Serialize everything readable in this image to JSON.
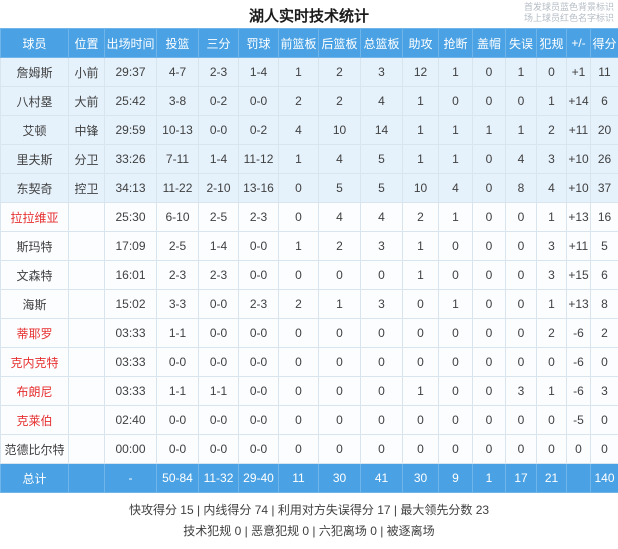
{
  "title": "湖人实时技术统计",
  "legend": {
    "line1": "首发球员蓝色背景标识",
    "line2": "场上球员红色名字标识"
  },
  "columns": [
    "球员",
    "位置",
    "出场时间",
    "投篮",
    "三分",
    "罚球",
    "前篮板",
    "后篮板",
    "总篮板",
    "助攻",
    "抢断",
    "盖帽",
    "失误",
    "犯规",
    "+/-",
    "得分"
  ],
  "field_order": [
    "name",
    "position",
    "time",
    "fg",
    "three",
    "ft",
    "oreb",
    "dreb",
    "reb",
    "ast",
    "stl",
    "blk",
    "tov",
    "pf",
    "plusminus",
    "pts"
  ],
  "players": [
    {
      "name": "詹姆斯",
      "position": "小前",
      "time": "29:37",
      "fg": "4-7",
      "three": "2-3",
      "ft": "1-4",
      "oreb": "1",
      "dreb": "2",
      "reb": "3",
      "ast": "12",
      "stl": "1",
      "blk": "0",
      "tov": "1",
      "pf": "0",
      "plusminus": "+1",
      "pts": "11",
      "starter": true,
      "oncourt": false
    },
    {
      "name": "八村塁",
      "position": "大前",
      "time": "25:42",
      "fg": "3-8",
      "three": "0-2",
      "ft": "0-0",
      "oreb": "2",
      "dreb": "2",
      "reb": "4",
      "ast": "1",
      "stl": "0",
      "blk": "0",
      "tov": "0",
      "pf": "1",
      "plusminus": "+14",
      "pts": "6",
      "starter": true,
      "oncourt": false
    },
    {
      "name": "艾顿",
      "position": "中锋",
      "time": "29:59",
      "fg": "10-13",
      "three": "0-0",
      "ft": "0-2",
      "oreb": "4",
      "dreb": "10",
      "reb": "14",
      "ast": "1",
      "stl": "1",
      "blk": "1",
      "tov": "1",
      "pf": "2",
      "plusminus": "+11",
      "pts": "20",
      "starter": true,
      "oncourt": false
    },
    {
      "name": "里夫斯",
      "position": "分卫",
      "time": "33:26",
      "fg": "7-11",
      "three": "1-4",
      "ft": "11-12",
      "oreb": "1",
      "dreb": "4",
      "reb": "5",
      "ast": "1",
      "stl": "1",
      "blk": "0",
      "tov": "4",
      "pf": "3",
      "plusminus": "+10",
      "pts": "26",
      "starter": true,
      "oncourt": false
    },
    {
      "name": "东契奇",
      "position": "控卫",
      "time": "34:13",
      "fg": "11-22",
      "three": "2-10",
      "ft": "13-16",
      "oreb": "0",
      "dreb": "5",
      "reb": "5",
      "ast": "10",
      "stl": "4",
      "blk": "0",
      "tov": "8",
      "pf": "4",
      "plusminus": "+10",
      "pts": "37",
      "starter": true,
      "oncourt": false
    },
    {
      "name": "拉拉维亚",
      "position": "",
      "time": "25:30",
      "fg": "6-10",
      "three": "2-5",
      "ft": "2-3",
      "oreb": "0",
      "dreb": "4",
      "reb": "4",
      "ast": "2",
      "stl": "1",
      "blk": "0",
      "tov": "0",
      "pf": "1",
      "plusminus": "+13",
      "pts": "16",
      "starter": false,
      "oncourt": true
    },
    {
      "name": "斯玛特",
      "position": "",
      "time": "17:09",
      "fg": "2-5",
      "three": "1-4",
      "ft": "0-0",
      "oreb": "1",
      "dreb": "2",
      "reb": "3",
      "ast": "1",
      "stl": "0",
      "blk": "0",
      "tov": "0",
      "pf": "3",
      "plusminus": "+11",
      "pts": "5",
      "starter": false,
      "oncourt": false
    },
    {
      "name": "文森特",
      "position": "",
      "time": "16:01",
      "fg": "2-3",
      "three": "2-3",
      "ft": "0-0",
      "oreb": "0",
      "dreb": "0",
      "reb": "0",
      "ast": "1",
      "stl": "0",
      "blk": "0",
      "tov": "0",
      "pf": "3",
      "plusminus": "+15",
      "pts": "6",
      "starter": false,
      "oncourt": false
    },
    {
      "name": "海斯",
      "position": "",
      "time": "15:02",
      "fg": "3-3",
      "three": "0-0",
      "ft": "2-3",
      "oreb": "2",
      "dreb": "1",
      "reb": "3",
      "ast": "0",
      "stl": "1",
      "blk": "0",
      "tov": "0",
      "pf": "1",
      "plusminus": "+13",
      "pts": "8",
      "starter": false,
      "oncourt": false
    },
    {
      "name": "蒂耶罗",
      "position": "",
      "time": "03:33",
      "fg": "1-1",
      "three": "0-0",
      "ft": "0-0",
      "oreb": "0",
      "dreb": "0",
      "reb": "0",
      "ast": "0",
      "stl": "0",
      "blk": "0",
      "tov": "0",
      "pf": "2",
      "plusminus": "-6",
      "pts": "2",
      "starter": false,
      "oncourt": true
    },
    {
      "name": "克内克特",
      "position": "",
      "time": "03:33",
      "fg": "0-0",
      "three": "0-0",
      "ft": "0-0",
      "oreb": "0",
      "dreb": "0",
      "reb": "0",
      "ast": "0",
      "stl": "0",
      "blk": "0",
      "tov": "0",
      "pf": "0",
      "plusminus": "-6",
      "pts": "0",
      "starter": false,
      "oncourt": true
    },
    {
      "name": "布朗尼",
      "position": "",
      "time": "03:33",
      "fg": "1-1",
      "three": "1-1",
      "ft": "0-0",
      "oreb": "0",
      "dreb": "0",
      "reb": "0",
      "ast": "1",
      "stl": "0",
      "blk": "0",
      "tov": "3",
      "pf": "1",
      "plusminus": "-6",
      "pts": "3",
      "starter": false,
      "oncourt": true
    },
    {
      "name": "克莱伯",
      "position": "",
      "time": "02:40",
      "fg": "0-0",
      "three": "0-0",
      "ft": "0-0",
      "oreb": "0",
      "dreb": "0",
      "reb": "0",
      "ast": "0",
      "stl": "0",
      "blk": "0",
      "tov": "0",
      "pf": "0",
      "plusminus": "-5",
      "pts": "0",
      "starter": false,
      "oncourt": true
    },
    {
      "name": "范德比尔特",
      "position": "",
      "time": "00:00",
      "fg": "0-0",
      "three": "0-0",
      "ft": "0-0",
      "oreb": "0",
      "dreb": "0",
      "reb": "0",
      "ast": "0",
      "stl": "0",
      "blk": "0",
      "tov": "0",
      "pf": "0",
      "plusminus": "0",
      "pts": "0",
      "starter": false,
      "oncourt": false
    }
  ],
  "total": {
    "name": "总计",
    "position": "",
    "time": "-",
    "fg": "50-84",
    "three": "11-32",
    "ft": "29-40",
    "oreb": "11",
    "dreb": "30",
    "reb": "41",
    "ast": "30",
    "stl": "9",
    "blk": "1",
    "tov": "17",
    "pf": "21",
    "plusminus": "",
    "pts": "140"
  },
  "team_stats": {
    "line1": "快攻得分 15 | 内线得分 74 | 利用对方失误得分 17 | 最大领先分数 23",
    "line2": "技术犯规 0 | 恶意犯规 0 | 六犯离场 0 | 被逐离场"
  },
  "colors": {
    "header_blue": "#4aa2e4",
    "starter_row_bg": "#e6f2fb",
    "oncourt_name_red": "#e62f2f",
    "grid_border": "#d8e4ee"
  }
}
